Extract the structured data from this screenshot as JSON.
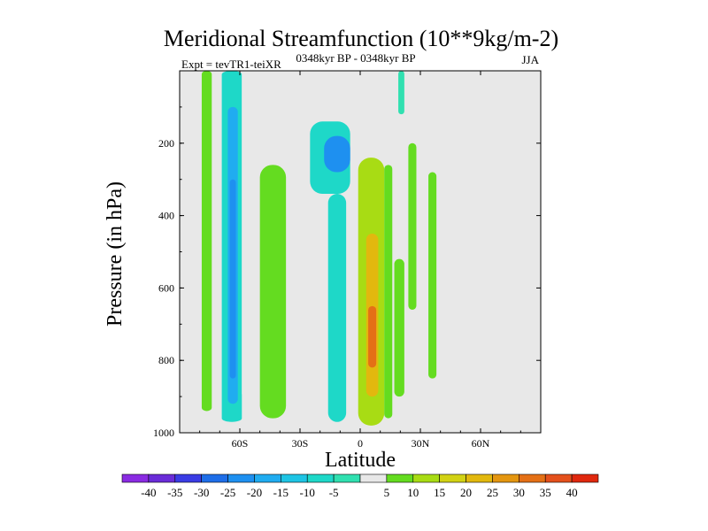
{
  "title": "Meridional Streamfunction (10**9kg/m-2)",
  "experiment_label": "Expt = tevTR1-teiXR",
  "period_label": "0348kyr BP - 0348kyr BP",
  "season_label": "JJA",
  "chart_data": {
    "type": "contour",
    "xlabel": "Latitude",
    "ylabel": "Pressure (in hPa)",
    "xlim": [
      -90,
      90
    ],
    "ylim": [
      1000,
      0
    ],
    "x_ticks": [
      {
        "value": -60,
        "label": "60S"
      },
      {
        "value": -30,
        "label": "30S"
      },
      {
        "value": 0,
        "label": "0"
      },
      {
        "value": 30,
        "label": "30N"
      },
      {
        "value": 60,
        "label": "60N"
      }
    ],
    "y_ticks": [
      {
        "value": 200,
        "label": "200"
      },
      {
        "value": 400,
        "label": "400"
      },
      {
        "value": 600,
        "label": "600"
      },
      {
        "value": 800,
        "label": "800"
      },
      {
        "value": 1000,
        "label": "1000"
      }
    ],
    "missing_color": "#e8e8e8",
    "colorbar": {
      "labels": [
        "-40",
        "-35",
        "-30",
        "-25",
        "-20",
        "-15",
        "-10",
        "-5",
        "5",
        "10",
        "15",
        "20",
        "25",
        "30",
        "35",
        "40"
      ],
      "colors": [
        "#8a2be2",
        "#6a2cd8",
        "#3a3ce4",
        "#1e6ee8",
        "#1e90f0",
        "#20acf0",
        "#1ec4e4",
        "#1ed8c8",
        "#30e0b0",
        "#e8e8e8",
        "#64dc20",
        "#a8dc14",
        "#d2d214",
        "#e2b80e",
        "#e49610",
        "#e47016",
        "#e4501c",
        "#e0280e"
      ]
    },
    "regions": [
      {
        "name": "sh-polar-band",
        "level": 10,
        "lat": [
          -79,
          -74
        ],
        "p_top": 0,
        "p_bottom": 940
      },
      {
        "name": "sh-high-lat-cell",
        "level": -10,
        "lat": [
          -69,
          -59
        ],
        "p_top": 0,
        "p_bottom": 970
      },
      {
        "name": "sh-high-lat-core",
        "level": -20,
        "lat": [
          -66,
          -61
        ],
        "p_top": 100,
        "p_bottom": 920
      },
      {
        "name": "sh-high-lat-core-deep",
        "level": -25,
        "lat": [
          -65,
          -62
        ],
        "p_top": 300,
        "p_bottom": 850
      },
      {
        "name": "sh-high-lat-edge",
        "level": 5,
        "lat": [
          -59,
          -56
        ],
        "p_top": 0,
        "p_bottom": 900
      },
      {
        "name": "sh-mid-lat-cell",
        "level": 10,
        "lat": [
          -50,
          -37
        ],
        "p_top": 260,
        "p_bottom": 960
      },
      {
        "name": "sh-subtropic-upper",
        "level": -10,
        "lat": [
          -25,
          -5
        ],
        "p_top": 140,
        "p_bottom": 340
      },
      {
        "name": "sh-subtropic-upper-core",
        "level": -25,
        "lat": [
          -18,
          -5
        ],
        "p_top": 180,
        "p_bottom": 280
      },
      {
        "name": "sh-subtropic-lower",
        "level": -10,
        "lat": [
          -16,
          -7
        ],
        "p_top": 340,
        "p_bottom": 970
      },
      {
        "name": "tropical-cell",
        "level": 15,
        "lat": [
          -1,
          12
        ],
        "p_top": 240,
        "p_bottom": 980
      },
      {
        "name": "tropical-cell-core",
        "level": 25,
        "lat": [
          3,
          9
        ],
        "p_top": 450,
        "p_bottom": 900
      },
      {
        "name": "tropical-cell-max",
        "level": 35,
        "lat": [
          4,
          8
        ],
        "p_top": 650,
        "p_bottom": 820
      },
      {
        "name": "nh-subtropic-band",
        "level": 10,
        "lat": [
          12,
          16
        ],
        "p_top": 260,
        "p_bottom": 960
      },
      {
        "name": "nh-subtropic-lower",
        "level": 10,
        "lat": [
          17,
          22
        ],
        "p_top": 520,
        "p_bottom": 900
      },
      {
        "name": "nh-subtropic-upper",
        "level": 10,
        "lat": [
          24,
          28
        ],
        "p_top": 200,
        "p_bottom": 660
      },
      {
        "name": "nh-mid-lat-cell",
        "level": 10,
        "lat": [
          34,
          38
        ],
        "p_top": 280,
        "p_bottom": 850
      },
      {
        "name": "nh-upper-sliver",
        "level": -5,
        "lat": [
          19,
          22
        ],
        "p_top": 0,
        "p_bottom": 120
      }
    ]
  }
}
